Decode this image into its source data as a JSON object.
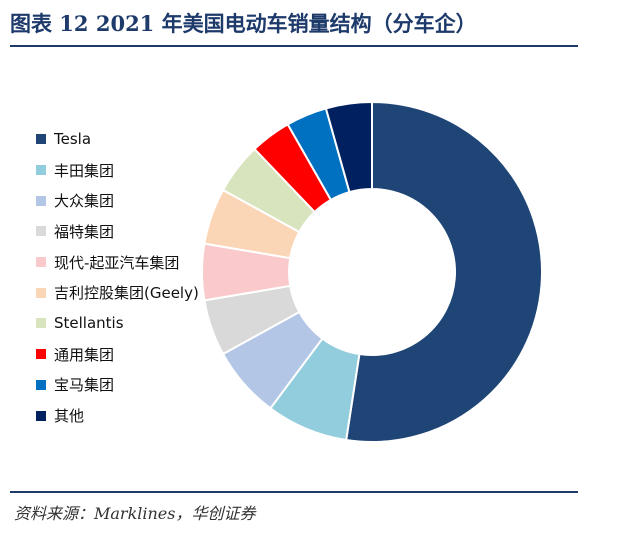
{
  "header": {
    "title": "图表 12   2021 年美国电动车销量结构（分车企）"
  },
  "footer": {
    "source": "资料来源：Marklines，华创证券"
  },
  "chart_data": {
    "type": "pie",
    "variant": "donut",
    "title": "2021 年美国电动车销量结构（分车企）",
    "legend_position": "left",
    "unit": "%",
    "series": [
      {
        "name": "Tesla",
        "value": 54.0,
        "color": "#1f4576"
      },
      {
        "name": "丰田集团",
        "value": 8.0,
        "color": "#92cddd"
      },
      {
        "name": "大众集团",
        "value": 7.0,
        "color": "#b3c6e6"
      },
      {
        "name": "福特集团",
        "value": 5.5,
        "color": "#d9d9d9"
      },
      {
        "name": "现代-起亚汽车集团",
        "value": 5.5,
        "color": "#f9c9cb"
      },
      {
        "name": "吉利控股集团(Geely)",
        "value": 5.5,
        "color": "#fbd6b6"
      },
      {
        "name": "Stellantis",
        "value": 5.0,
        "color": "#d8e4bd"
      },
      {
        "name": "通用集团",
        "value": 4.0,
        "color": "#ff0000"
      },
      {
        "name": "宝马集团",
        "value": 4.0,
        "color": "#0070c0"
      },
      {
        "name": "其他",
        "value": 4.5,
        "color": "#002060"
      }
    ]
  }
}
